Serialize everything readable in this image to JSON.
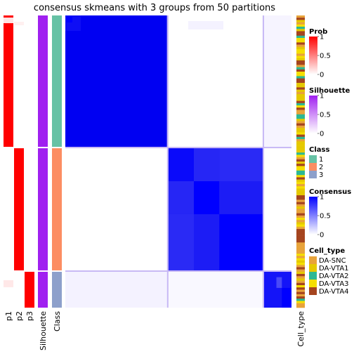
{
  "chart_data": {
    "type": "heatmap",
    "title": "consensus skmeans with 3 groups from 50 partitions",
    "row_annotation_labels": [
      "p1",
      "p2",
      "p3",
      "Silhouette",
      "Class"
    ],
    "column_annotation_label": "Cell_type",
    "groups": [
      {
        "class": "1",
        "size": 67,
        "color": "#66C2A5"
      },
      {
        "class": "2",
        "size": 63,
        "color": "#FC8D62"
      },
      {
        "class": "3",
        "size": 19,
        "color": "#8DA0CB"
      }
    ],
    "legends": {
      "prob": {
        "title": "Prob",
        "ticks": [
          "1",
          "0.5",
          "0"
        ],
        "colors": [
          "#FF0000",
          "#FFFFFF"
        ]
      },
      "silhouette": {
        "title": "Silhouette",
        "ticks": [
          "1",
          "0.5",
          "0"
        ],
        "colors": [
          "#A020F0",
          "#FFFFFF"
        ]
      },
      "class": {
        "title": "Class",
        "items": [
          {
            "label": "1",
            "color": "#66C2A5"
          },
          {
            "label": "2",
            "color": "#FC8D62"
          },
          {
            "label": "3",
            "color": "#8DA0CB"
          }
        ]
      },
      "consensus": {
        "title": "Consensus",
        "ticks": [
          "1",
          "0.5",
          "0"
        ],
        "colors": [
          "#0000FF",
          "#FFFFFF"
        ]
      },
      "cell_type": {
        "title": "Cell_type",
        "items": [
          {
            "label": "DA-SNC",
            "color": "#E8A33A"
          },
          {
            "label": "DA-VTA1",
            "color": "#E5C900"
          },
          {
            "label": "DA-VTA2",
            "color": "#2DB894"
          },
          {
            "label": "DA-VTA3",
            "color": "#F5DF00"
          },
          {
            "label": "DA-VTA4",
            "color": "#A5441E"
          }
        ]
      }
    }
  }
}
